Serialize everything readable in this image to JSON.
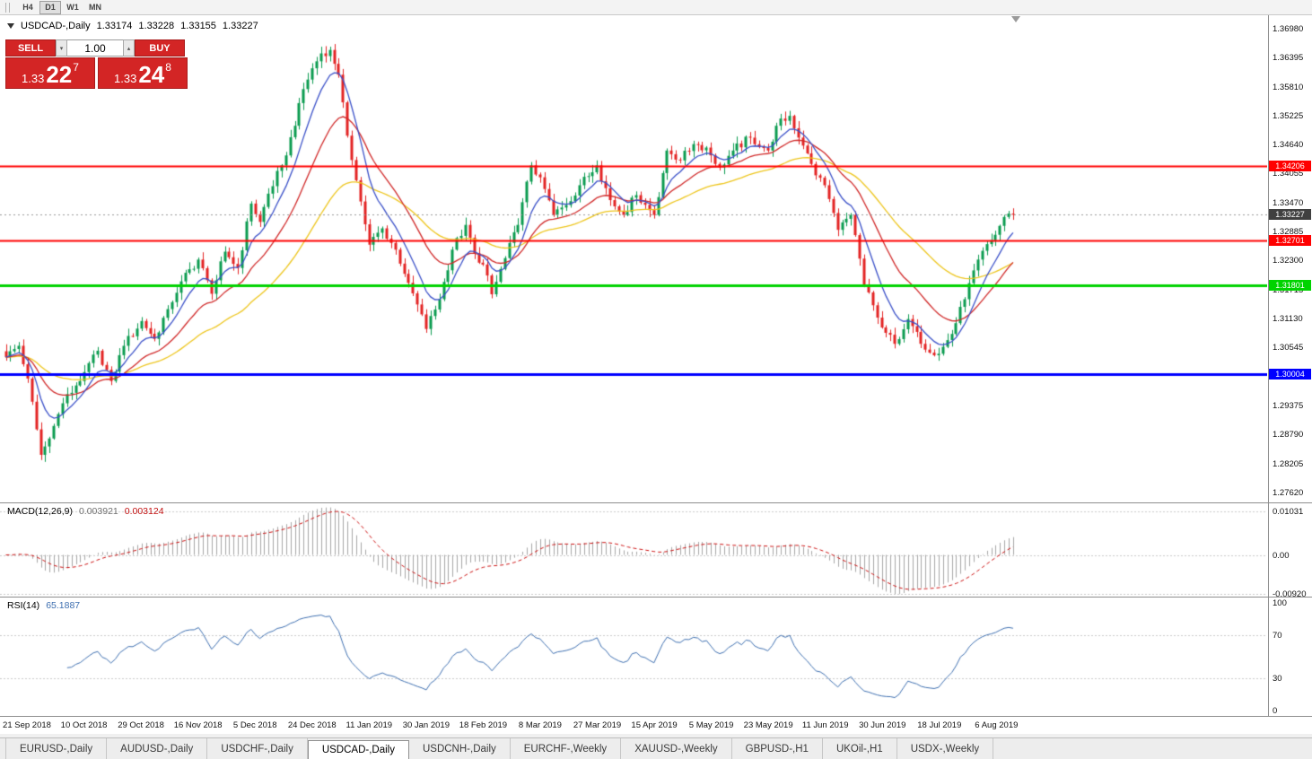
{
  "toolbar": {
    "periods": [
      {
        "label": "H4",
        "active": false
      },
      {
        "label": "D1",
        "active": true
      },
      {
        "label": "W1",
        "active": false
      },
      {
        "label": "MN",
        "active": false
      }
    ]
  },
  "chart": {
    "symbol": "USDCAD-,Daily",
    "ohlc": {
      "open": "1.33174",
      "high": "1.33228",
      "low": "1.33155",
      "close": "1.33227"
    },
    "trade_panel": {
      "sell_label": "SELL",
      "buy_label": "BUY",
      "volume": "1.00",
      "bid": {
        "handle": "1.33",
        "pips": "22",
        "point": "7"
      },
      "ask": {
        "handle": "1.33",
        "pips": "24",
        "point": "8"
      },
      "button_color": "#d32525"
    }
  },
  "chart_data": {
    "type": "candlestick",
    "title": "USDCAD-,Daily",
    "legend_position": "top-left",
    "grid": false,
    "x_labels": [
      "21 Sep 2018",
      "10 Oct 2018",
      "29 Oct 2018",
      "16 Nov 2018",
      "5 Dec 2018",
      "24 Dec 2018",
      "11 Jan 2019",
      "30 Jan 2019",
      "18 Feb 2019",
      "8 Mar 2019",
      "27 Mar 2019",
      "15 Apr 2019",
      "5 May 2019",
      "23 May 2019",
      "11 Jun 2019",
      "30 Jun 2019",
      "18 Jul 2019",
      "6 Aug 2019"
    ],
    "price_axis": {
      "ylim": [
        1.2742,
        1.3725
      ],
      "ticks": [
        "1.36980",
        "1.36395",
        "1.35810",
        "1.35225",
        "1.34640",
        "1.34055",
        "1.33470",
        "1.32885",
        "1.32300",
        "1.31715",
        "1.31130",
        "1.30545",
        "1.29960",
        "1.29375",
        "1.28790",
        "1.28205",
        "1.27620"
      ]
    },
    "levels": [
      {
        "value": 1.34206,
        "label": "1.34206",
        "color": "#ff0000",
        "width": 2
      },
      {
        "value": 1.32701,
        "label": "1.32701",
        "color": "#ff0000",
        "width": 2
      },
      {
        "value": 1.31801,
        "label": "1.31801",
        "color": "#00d300",
        "width": 3
      },
      {
        "value": 1.30004,
        "label": "1.30004",
        "color": "#0000ff",
        "width": 3
      }
    ],
    "current_price": {
      "value": 1.33227,
      "label": "1.33227",
      "badge_color": "#404040",
      "line_color": "#999999"
    },
    "candle_colors": {
      "bull": "#0a9b4f",
      "bear": "#e32222"
    },
    "num_candles": 231,
    "price_path_anchors": [
      [
        0,
        1.3035
      ],
      [
        3,
        1.3058
      ],
      [
        5,
        1.2992
      ],
      [
        8,
        1.2838
      ],
      [
        10,
        1.2871
      ],
      [
        13,
        1.2942
      ],
      [
        16,
        1.2978
      ],
      [
        18,
        1.3005
      ],
      [
        21,
        1.3048
      ],
      [
        24,
        1.2987
      ],
      [
        27,
        1.3058
      ],
      [
        31,
        1.3108
      ],
      [
        34,
        1.3072
      ],
      [
        37,
        1.3132
      ],
      [
        40,
        1.3188
      ],
      [
        44,
        1.3232
      ],
      [
        47,
        1.3163
      ],
      [
        50,
        1.3248
      ],
      [
        53,
        1.3215
      ],
      [
        56,
        1.3345
      ],
      [
        58,
        1.3308
      ],
      [
        60,
        1.3365
      ],
      [
        63,
        1.3422
      ],
      [
        66,
        1.3502
      ],
      [
        68,
        1.3576
      ],
      [
        70,
        1.3618
      ],
      [
        72,
        1.3648
      ],
      [
        74,
        1.3655
      ],
      [
        76,
        1.3605
      ],
      [
        78,
        1.3482
      ],
      [
        80,
        1.3392
      ],
      [
        83,
        1.3262
      ],
      [
        86,
        1.3295
      ],
      [
        89,
        1.3252
      ],
      [
        92,
        1.3185
      ],
      [
        96,
        1.3092
      ],
      [
        99,
        1.3152
      ],
      [
        102,
        1.3252
      ],
      [
        105,
        1.3302
      ],
      [
        107,
        1.3245
      ],
      [
        109,
        1.3222
      ],
      [
        111,
        1.3162
      ],
      [
        114,
        1.3235
      ],
      [
        117,
        1.3302
      ],
      [
        120,
        1.3422
      ],
      [
        122,
        1.3398
      ],
      [
        125,
        1.3322
      ],
      [
        128,
        1.3342
      ],
      [
        131,
        1.3382
      ],
      [
        135,
        1.3422
      ],
      [
        138,
        1.3352
      ],
      [
        141,
        1.3322
      ],
      [
        144,
        1.3362
      ],
      [
        148,
        1.3322
      ],
      [
        151,
        1.3452
      ],
      [
        154,
        1.3432
      ],
      [
        157,
        1.3465
      ],
      [
        160,
        1.3458
      ],
      [
        163,
        1.3418
      ],
      [
        166,
        1.3452
      ],
      [
        170,
        1.3478
      ],
      [
        174,
        1.3452
      ],
      [
        176,
        1.3502
      ],
      [
        179,
        1.3522
      ],
      [
        182,
        1.3462
      ],
      [
        185,
        1.3402
      ],
      [
        187,
        1.3382
      ],
      [
        190,
        1.3292
      ],
      [
        193,
        1.3322
      ],
      [
        196,
        1.3182
      ],
      [
        200,
        1.3095
      ],
      [
        203,
        1.3062
      ],
      [
        206,
        1.3112
      ],
      [
        209,
        1.3062
      ],
      [
        213,
        1.3042
      ],
      [
        216,
        1.3082
      ],
      [
        219,
        1.3152
      ],
      [
        222,
        1.3232
      ],
      [
        226,
        1.3282
      ],
      [
        228,
        1.3318
      ],
      [
        230,
        1.33227
      ]
    ],
    "moving_averages": [
      {
        "period": 45,
        "color": "#edc51c"
      },
      {
        "period": 20,
        "color": "#d02828"
      },
      {
        "period": 8,
        "color": "#3a50c8"
      }
    ],
    "macd": {
      "label": "MACD(12,26,9)",
      "value_main": "0.003921",
      "value_signal": "0.003124",
      "fast": 12,
      "slow": 26,
      "signal": 9,
      "axis_ticks": [
        {
          "value": 0.01031,
          "label": "0.01031"
        },
        {
          "value": 0,
          "label": "0.00"
        },
        {
          "value": -0.0092,
          "label": "-0.00920"
        }
      ],
      "hist_color": "#a6a6a6",
      "signal_color": "#cc1111"
    },
    "rsi": {
      "label": "RSI(14)",
      "value": "65.1887",
      "period": 14,
      "axis_ticks": [
        {
          "value": 100,
          "label": "100"
        },
        {
          "value": 70,
          "label": "70"
        },
        {
          "value": 30,
          "label": "30"
        },
        {
          "value": 0,
          "label": "0"
        }
      ],
      "levels": [
        70,
        30
      ],
      "color": "#3e6fb0"
    }
  },
  "tabs": [
    {
      "label": "EURUSD-,Daily",
      "active": false
    },
    {
      "label": "AUDUSD-,Daily",
      "active": false
    },
    {
      "label": "USDCHF-,Daily",
      "active": false
    },
    {
      "label": "USDCAD-,Daily",
      "active": true
    },
    {
      "label": "USDCNH-,Daily",
      "active": false
    },
    {
      "label": "EURCHF-,Weekly",
      "active": false
    },
    {
      "label": "XAUUSD-,Weekly",
      "active": false
    },
    {
      "label": "GBPUSD-,H1",
      "active": false
    },
    {
      "label": "UKOil-,H1",
      "active": false
    },
    {
      "label": "USDX-,Weekly",
      "active": false
    }
  ]
}
